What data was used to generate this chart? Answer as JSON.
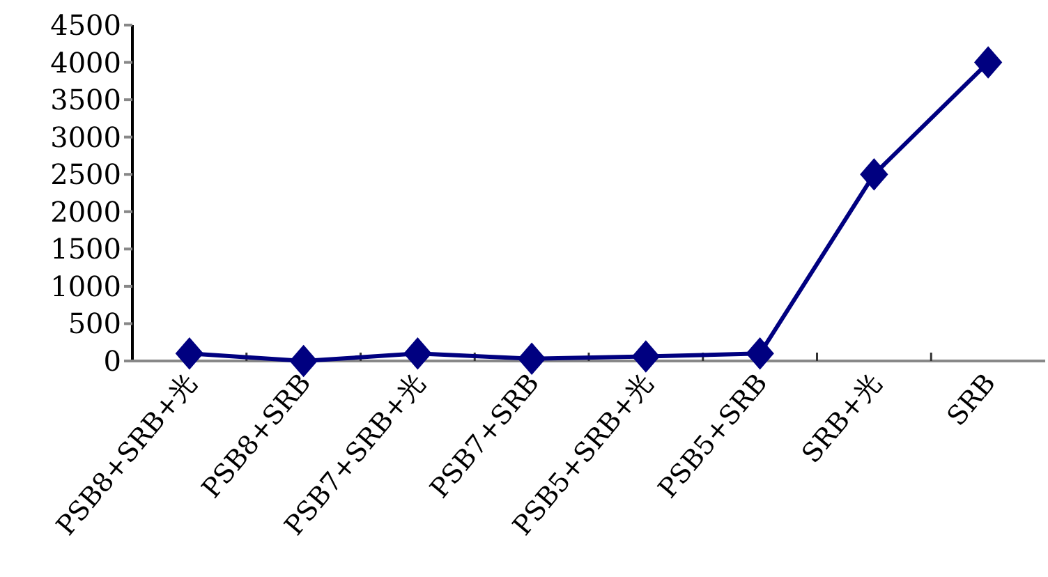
{
  "chart_data": {
    "type": "line",
    "categories": [
      "PSB8+SRB+光",
      "PSB8+SRB",
      "PSB7+SRB+光",
      "PSB7+SRB",
      "PSB5+SRB+光",
      "PSB5+SRB",
      "SRB+光",
      "SRB"
    ],
    "series": [
      {
        "color": "#000080",
        "values": [
          100,
          0,
          100,
          30,
          60,
          100,
          2500,
          4000
        ]
      }
    ],
    "ylim": [
      0,
      4500
    ],
    "yticks": [
      0,
      500,
      1000,
      1500,
      2000,
      2500,
      3000,
      3500,
      4000,
      4500
    ],
    "grid": false,
    "marker": "diamond",
    "line_style": "solid"
  }
}
